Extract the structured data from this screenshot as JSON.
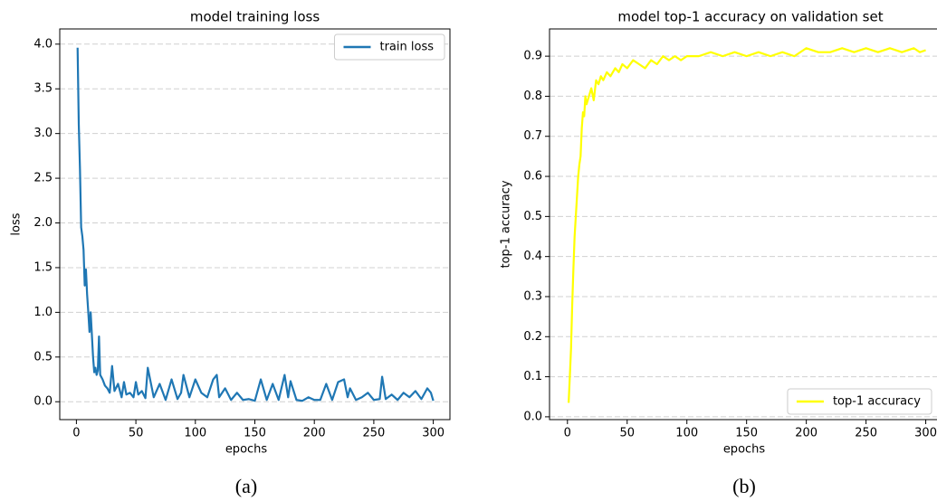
{
  "chart_data": [
    {
      "type": "line",
      "title": "model training loss",
      "xlabel": "epochs",
      "ylabel": "loss",
      "caption": "(a)",
      "x": [
        1,
        2,
        3,
        4,
        5,
        6,
        7,
        8,
        9,
        10,
        11,
        12,
        13,
        14,
        15,
        16,
        17,
        18,
        19,
        20,
        22,
        24,
        26,
        28,
        30,
        32,
        35,
        38,
        40,
        42,
        45,
        48,
        50,
        52,
        55,
        58,
        60,
        65,
        70,
        75,
        80,
        85,
        88,
        90,
        95,
        100,
        105,
        110,
        115,
        118,
        120,
        125,
        130,
        135,
        140,
        145,
        150,
        155,
        160,
        165,
        170,
        175,
        178,
        180,
        185,
        190,
        195,
        200,
        205,
        210,
        215,
        220,
        225,
        228,
        230,
        235,
        240,
        245,
        250,
        255,
        257,
        260,
        265,
        270,
        275,
        280,
        285,
        290,
        295,
        298,
        300
      ],
      "series": [
        {
          "name": "train loss",
          "color": "#1f77b4",
          "values": [
            3.96,
            3.1,
            2.6,
            1.95,
            1.85,
            1.7,
            1.3,
            1.48,
            1.2,
            1.0,
            0.78,
            1.0,
            0.75,
            0.5,
            0.33,
            0.38,
            0.3,
            0.35,
            0.73,
            0.3,
            0.25,
            0.18,
            0.15,
            0.1,
            0.4,
            0.12,
            0.2,
            0.05,
            0.22,
            0.08,
            0.1,
            0.05,
            0.22,
            0.08,
            0.12,
            0.04,
            0.38,
            0.05,
            0.2,
            0.02,
            0.25,
            0.03,
            0.1,
            0.3,
            0.05,
            0.25,
            0.1,
            0.05,
            0.25,
            0.3,
            0.05,
            0.15,
            0.02,
            0.1,
            0.02,
            0.03,
            0.01,
            0.25,
            0.02,
            0.2,
            0.02,
            0.3,
            0.05,
            0.23,
            0.02,
            0.01,
            0.05,
            0.02,
            0.02,
            0.2,
            0.02,
            0.22,
            0.25,
            0.05,
            0.15,
            0.02,
            0.05,
            0.1,
            0.02,
            0.03,
            0.28,
            0.03,
            0.08,
            0.02,
            0.1,
            0.05,
            0.12,
            0.03,
            0.15,
            0.1,
            0.01
          ]
        }
      ],
      "xlim": [
        -14,
        314
      ],
      "ylim": [
        -0.2,
        4.17
      ],
      "xticks": [
        0,
        50,
        100,
        150,
        200,
        250,
        300
      ],
      "yticks": [
        {
          "value": 0,
          "label": "0.0"
        },
        0.5,
        {
          "value": 1,
          "label": "1.0"
        },
        1.5,
        {
          "value": 2,
          "label": "2.0"
        },
        2.5,
        {
          "value": 3,
          "label": "3.0"
        },
        3.5,
        {
          "value": 4,
          "label": "4.0"
        }
      ],
      "grid": true,
      "legend": "upper right"
    },
    {
      "type": "line",
      "title": "model top-1 accuracy on validation set",
      "xlabel": "epochs",
      "ylabel": "top-1 accuracy",
      "caption": "(b)",
      "x": [
        1,
        2,
        3,
        4,
        5,
        6,
        7,
        8,
        9,
        10,
        11,
        12,
        13,
        14,
        15,
        16,
        18,
        20,
        22,
        24,
        26,
        28,
        30,
        33,
        36,
        40,
        43,
        46,
        50,
        55,
        60,
        65,
        70,
        75,
        80,
        85,
        90,
        95,
        100,
        110,
        120,
        130,
        140,
        150,
        160,
        170,
        180,
        190,
        200,
        210,
        220,
        230,
        240,
        250,
        260,
        270,
        280,
        290,
        295,
        300
      ],
      "series": [
        {
          "name": "top-1 accuracy",
          "color": "#ffff00",
          "values": [
            0.035,
            0.1,
            0.17,
            0.28,
            0.37,
            0.45,
            0.5,
            0.55,
            0.6,
            0.63,
            0.65,
            0.72,
            0.76,
            0.75,
            0.8,
            0.78,
            0.8,
            0.82,
            0.79,
            0.84,
            0.83,
            0.85,
            0.84,
            0.86,
            0.85,
            0.87,
            0.86,
            0.88,
            0.87,
            0.89,
            0.88,
            0.87,
            0.89,
            0.88,
            0.9,
            0.89,
            0.9,
            0.89,
            0.9,
            0.9,
            0.91,
            0.9,
            0.91,
            0.9,
            0.91,
            0.9,
            0.91,
            0.9,
            0.92,
            0.91,
            0.91,
            0.92,
            0.91,
            0.92,
            0.91,
            0.92,
            0.91,
            0.92,
            0.91,
            0.915
          ]
        }
      ],
      "xlim": [
        -15,
        317
      ],
      "ylim": [
        -0.007,
        0.968
      ],
      "xticks": [
        0,
        50,
        100,
        150,
        200,
        250,
        300
      ],
      "yticks": [
        {
          "value": 0,
          "label": "0.0"
        },
        0.1,
        0.2,
        0.3,
        0.4,
        0.5,
        0.6,
        0.7,
        0.8,
        0.9
      ],
      "grid": true,
      "legend": "lower right"
    }
  ]
}
